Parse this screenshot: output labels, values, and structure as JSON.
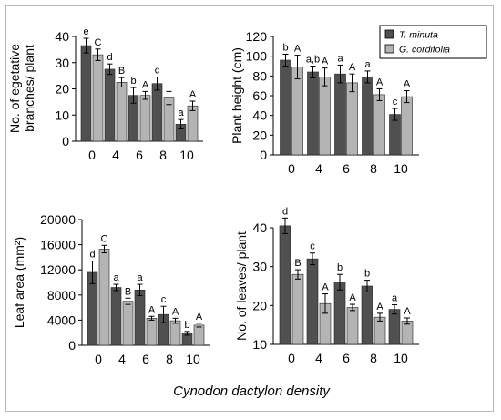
{
  "figure": {
    "x_title": "Cynodon dactylon density",
    "colors": {
      "t_minuta": "#505050",
      "g_cordifolia": "#b4b4b4",
      "axis": "#000000",
      "border": "#b9b9b9"
    }
  },
  "legend": {
    "entries": [
      {
        "name": "T. minuta",
        "color": "#505050"
      },
      {
        "name": "G. cordifolia",
        "color": "#b4b4b4"
      }
    ],
    "placement": "top-right"
  },
  "chart_data": [
    {
      "type": "bar",
      "ylabel_lines": [
        "No. of egetative",
        "branches/ plant"
      ],
      "categories": [
        "0",
        "4",
        "6",
        "8",
        "10"
      ],
      "ylim": [
        0,
        40
      ],
      "yticks": [
        "0",
        "10",
        "20",
        "30",
        "40"
      ],
      "series": [
        {
          "name": "T. minuta",
          "values": [
            36.5,
            27.5,
            17.5,
            22,
            6.5
          ],
          "errors": [
            2.8,
            2,
            3,
            2.5,
            1.8
          ],
          "labels": [
            "e",
            "d",
            "b",
            "c",
            "a"
          ]
        },
        {
          "name": "G. cordifolia",
          "values": [
            33,
            22.5,
            17.5,
            16.5,
            13.5
          ],
          "errors": [
            2.2,
            1.8,
            1.5,
            2.5,
            1.8
          ],
          "labels": [
            "C",
            "B",
            "A",
            "",
            "A"
          ]
        }
      ]
    },
    {
      "type": "bar",
      "ylabel_lines": [
        "Plant height (cm)"
      ],
      "categories": [
        "0",
        "4",
        "6",
        "8",
        "10"
      ],
      "ylim": [
        0,
        120
      ],
      "yticks": [
        "0",
        "20",
        "40",
        "60",
        "80",
        "100",
        "120"
      ],
      "series": [
        {
          "name": "T. minuta",
          "values": [
            96,
            84,
            82,
            79,
            41
          ],
          "errors": [
            6,
            6,
            9,
            6,
            6
          ],
          "labels": [
            "b",
            "a,b",
            "a",
            "a",
            "c"
          ]
        },
        {
          "name": "G. cordifolia",
          "values": [
            89,
            79,
            73,
            61,
            59
          ],
          "errors": [
            12,
            9,
            9,
            6,
            6
          ],
          "labels": [
            "A",
            "A",
            "A",
            "A",
            "A"
          ]
        }
      ]
    },
    {
      "type": "bar",
      "ylabel_html": "Leaf area (mm²)",
      "categories": [
        "0",
        "4",
        "6",
        "8",
        "10"
      ],
      "ylim": [
        0,
        20000
      ],
      "yticks": [
        "0",
        "4000",
        "8000",
        "12000",
        "16000",
        "20000"
      ],
      "series": [
        {
          "name": "T. minuta",
          "values": [
            11600,
            9200,
            8800,
            4900,
            1900
          ],
          "errors": [
            1800,
            500,
            900,
            1300,
            300
          ],
          "labels": [
            "d",
            "a",
            "a",
            "c",
            "b"
          ]
        },
        {
          "name": "G. cordifolia",
          "values": [
            15300,
            7000,
            4300,
            3900,
            3200
          ],
          "errors": [
            600,
            500,
            300,
            400,
            300
          ],
          "labels": [
            "C",
            "B",
            "A",
            "A",
            "A"
          ]
        }
      ]
    },
    {
      "type": "bar",
      "ylabel_lines": [
        "No. of leaves/ plant"
      ],
      "categories": [
        "0",
        "4",
        "6",
        "8",
        "10"
      ],
      "ylim": [
        10,
        40
      ],
      "yticks": [
        "10",
        "20",
        "30",
        "40"
      ],
      "series": [
        {
          "name": "T. minuta",
          "values": [
            40.5,
            32,
            26,
            25,
            19
          ],
          "errors": [
            2,
            1.5,
            2,
            1.5,
            1.2
          ],
          "labels": [
            "d",
            "c",
            "b",
            "b",
            "a"
          ]
        },
        {
          "name": "G. cordifolia",
          "values": [
            28,
            20.5,
            19.5,
            17,
            16
          ],
          "errors": [
            1.2,
            2.5,
            0.8,
            1,
            0.8
          ],
          "labels": [
            "B",
            "A",
            "A",
            "A",
            "A"
          ]
        }
      ]
    }
  ]
}
